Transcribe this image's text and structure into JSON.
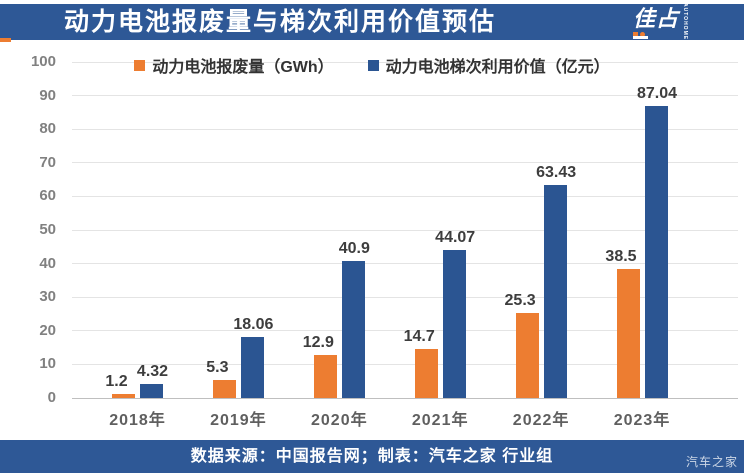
{
  "header": {
    "title": "动力电池报废量与梯次利用价值预估",
    "logo": {
      "chars": "佳占",
      "vertical_text": "AUTOHOME"
    }
  },
  "legend": {
    "items": [
      {
        "label": "动力电池报废量（GWh）",
        "color": "#ED7D31"
      },
      {
        "label": "动力电池梯次利用价值（亿元）",
        "color": "#2B5592"
      }
    ]
  },
  "chart_data": {
    "type": "bar",
    "title": "动力电池报废量与梯次利用价值预估",
    "categories": [
      "2018年",
      "2019年",
      "2020年",
      "2021年",
      "2022年",
      "2023年"
    ],
    "series": [
      {
        "name": "动力电池报废量（GWh）",
        "color": "#ED7D31",
        "values": [
          1.2,
          5.3,
          12.9,
          14.7,
          25.3,
          38.5
        ]
      },
      {
        "name": "动力电池梯次利用价值（亿元）",
        "color": "#2B5592",
        "values": [
          4.32,
          18.06,
          40.9,
          44.07,
          63.43,
          87.04
        ]
      }
    ],
    "data_labels": [
      [
        "1.2",
        "5.3",
        "12.9",
        "14.7",
        "25.3",
        "38.5"
      ],
      [
        "4.32",
        "18.06",
        "40.9",
        "44.07",
        "63.43",
        "87.04"
      ]
    ],
    "xlabel": "",
    "ylabel": "",
    "ylim": [
      0,
      100
    ],
    "ytick_step": 10,
    "grid": true,
    "legend_position": "top"
  },
  "footer": {
    "source_text": "数据来源：中国报告网；制表：汽车之家 行业组",
    "watermark": "汽车之家"
  },
  "colors": {
    "band_blue": "#2E5896",
    "orange": "#ED7D31",
    "bar_blue": "#2B5592",
    "gridline": "#E4E4E4",
    "axis_text": "#808080",
    "label_text": "#3D3D3D"
  }
}
